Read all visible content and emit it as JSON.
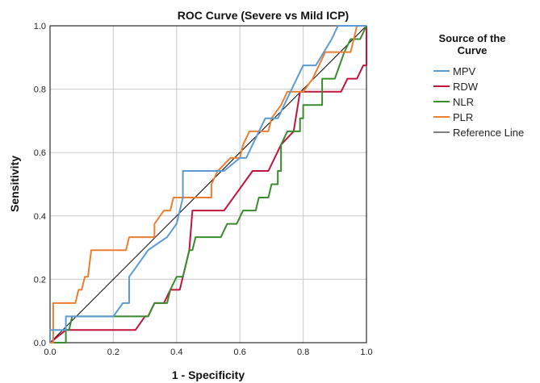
{
  "chart_data": {
    "type": "line",
    "title": "ROC Curve (Severe vs Mild ICP)",
    "xlabel": "1 - Specificity",
    "ylabel": "Sensitivity",
    "xlim": [
      0,
      1
    ],
    "ylim": [
      0,
      1
    ],
    "x_ticks": [
      "0.0",
      "0.2",
      "0.4",
      "0.6",
      "0.8",
      "1.0"
    ],
    "y_ticks": [
      "0.0",
      "0.2",
      "0.4",
      "0.6",
      "0.8",
      "1.0"
    ],
    "grid": true,
    "legend": {
      "title": "Source of the Curve",
      "title_lines": [
        "Source of the",
        "Curve"
      ],
      "placement": "right"
    },
    "series": [
      {
        "name": "MPV",
        "color": "#5b9bd5",
        "points": [
          [
            0,
            0
          ],
          [
            0,
            0.04
          ],
          [
            0.05,
            0.04
          ],
          [
            0.05,
            0.083
          ],
          [
            0.2,
            0.083
          ],
          [
            0.23,
            0.125
          ],
          [
            0.25,
            0.125
          ],
          [
            0.25,
            0.208
          ],
          [
            0.28,
            0.25
          ],
          [
            0.31,
            0.292
          ],
          [
            0.34,
            0.313
          ],
          [
            0.37,
            0.333
          ],
          [
            0.4,
            0.375
          ],
          [
            0.42,
            0.458
          ],
          [
            0.42,
            0.542
          ],
          [
            0.55,
            0.542
          ],
          [
            0.6,
            0.583
          ],
          [
            0.62,
            0.583
          ],
          [
            0.68,
            0.708
          ],
          [
            0.72,
            0.708
          ],
          [
            0.76,
            0.792
          ],
          [
            0.8,
            0.875
          ],
          [
            0.84,
            0.875
          ],
          [
            0.89,
            0.958
          ],
          [
            0.91,
            1.0
          ],
          [
            1.0,
            1.0
          ]
        ]
      },
      {
        "name": "RDW",
        "color": "#c0143c",
        "points": [
          [
            0,
            0
          ],
          [
            0.05,
            0.04
          ],
          [
            0.27,
            0.04
          ],
          [
            0.3,
            0.083
          ],
          [
            0.31,
            0.083
          ],
          [
            0.33,
            0.125
          ],
          [
            0.36,
            0.125
          ],
          [
            0.38,
            0.167
          ],
          [
            0.41,
            0.167
          ],
          [
            0.43,
            0.25
          ],
          [
            0.44,
            0.292
          ],
          [
            0.45,
            0.417
          ],
          [
            0.55,
            0.417
          ],
          [
            0.61,
            0.5
          ],
          [
            0.64,
            0.542
          ],
          [
            0.69,
            0.542
          ],
          [
            0.73,
            0.625
          ],
          [
            0.77,
            0.667
          ],
          [
            0.79,
            0.792
          ],
          [
            0.92,
            0.792
          ],
          [
            0.94,
            0.833
          ],
          [
            0.97,
            0.833
          ],
          [
            0.99,
            0.875
          ],
          [
            1.0,
            0.875
          ],
          [
            1.0,
            1.0
          ]
        ]
      },
      {
        "name": "NLR",
        "color": "#3a8a2e",
        "points": [
          [
            0,
            0
          ],
          [
            0.05,
            0
          ],
          [
            0.05,
            0.04
          ],
          [
            0.06,
            0.04
          ],
          [
            0.07,
            0.083
          ],
          [
            0.31,
            0.083
          ],
          [
            0.33,
            0.125
          ],
          [
            0.37,
            0.125
          ],
          [
            0.38,
            0.167
          ],
          [
            0.4,
            0.208
          ],
          [
            0.42,
            0.208
          ],
          [
            0.44,
            0.292
          ],
          [
            0.45,
            0.292
          ],
          [
            0.46,
            0.333
          ],
          [
            0.54,
            0.333
          ],
          [
            0.56,
            0.375
          ],
          [
            0.59,
            0.375
          ],
          [
            0.61,
            0.417
          ],
          [
            0.65,
            0.417
          ],
          [
            0.66,
            0.458
          ],
          [
            0.69,
            0.458
          ],
          [
            0.7,
            0.5
          ],
          [
            0.72,
            0.5
          ],
          [
            0.72,
            0.542
          ],
          [
            0.73,
            0.542
          ],
          [
            0.73,
            0.625
          ],
          [
            0.75,
            0.667
          ],
          [
            0.79,
            0.667
          ],
          [
            0.79,
            0.708
          ],
          [
            0.8,
            0.708
          ],
          [
            0.8,
            0.75
          ],
          [
            0.86,
            0.75
          ],
          [
            0.86,
            0.833
          ],
          [
            0.9,
            0.833
          ],
          [
            0.93,
            0.917
          ],
          [
            0.95,
            0.958
          ],
          [
            0.98,
            0.958
          ],
          [
            1.0,
            1.0
          ]
        ]
      },
      {
        "name": "PLR",
        "color": "#ed7d31",
        "points": [
          [
            0,
            0
          ],
          [
            0.01,
            0
          ],
          [
            0.01,
            0.125
          ],
          [
            0.08,
            0.125
          ],
          [
            0.09,
            0.167
          ],
          [
            0.1,
            0.167
          ],
          [
            0.11,
            0.208
          ],
          [
            0.12,
            0.208
          ],
          [
            0.13,
            0.292
          ],
          [
            0.24,
            0.292
          ],
          [
            0.25,
            0.333
          ],
          [
            0.33,
            0.333
          ],
          [
            0.33,
            0.375
          ],
          [
            0.36,
            0.417
          ],
          [
            0.38,
            0.417
          ],
          [
            0.39,
            0.458
          ],
          [
            0.51,
            0.458
          ],
          [
            0.51,
            0.5
          ],
          [
            0.53,
            0.542
          ],
          [
            0.57,
            0.583
          ],
          [
            0.6,
            0.583
          ],
          [
            0.61,
            0.625
          ],
          [
            0.63,
            0.667
          ],
          [
            0.69,
            0.667
          ],
          [
            0.7,
            0.708
          ],
          [
            0.73,
            0.75
          ],
          [
            0.75,
            0.792
          ],
          [
            0.8,
            0.792
          ],
          [
            0.83,
            0.833
          ],
          [
            0.85,
            0.875
          ],
          [
            0.87,
            0.917
          ],
          [
            0.95,
            0.917
          ],
          [
            0.96,
            0.958
          ],
          [
            0.97,
            1.0
          ],
          [
            1.0,
            1.0
          ]
        ]
      },
      {
        "name": "Reference Line",
        "color": "#000000",
        "points": [
          [
            0,
            0
          ],
          [
            1,
            1
          ]
        ]
      }
    ]
  }
}
